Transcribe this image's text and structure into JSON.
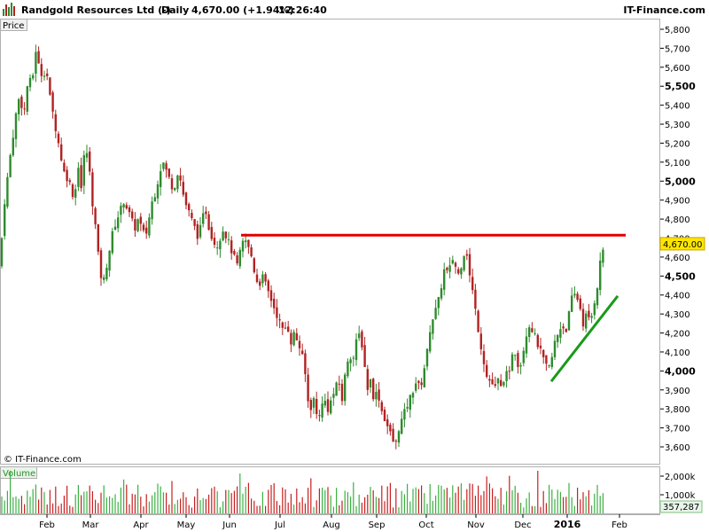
{
  "header": {
    "title": "Randgold Resources Ltd (-)",
    "interval": "Daily",
    "quote": "4,670.00 (+1.94%)",
    "time": "12:26:40",
    "brand": "IT-Finance.com"
  },
  "price_panel": {
    "label": "Price",
    "copyright": "© IT-Finance.com",
    "last_price_label": "4,670.00"
  },
  "volume_panel": {
    "label": "Volume",
    "ticks": [
      "2,000k",
      "1,000k"
    ],
    "last_volume_label": "357,287"
  },
  "colors": {
    "up_candle": "#2e8b2e",
    "down_candle": "#b22222",
    "resistance_line": "#e00000",
    "support_line": "#1a9a1a",
    "volume_bar_up": "#3cb043",
    "volume_bar_down": "#c82020"
  },
  "chart_data": {
    "type": "candlestick",
    "x_axis": {
      "labels": [
        "Feb",
        "Mar",
        "Apr",
        "May",
        "Jun",
        "Jul",
        "Aug",
        "Sep",
        "Oct",
        "Nov",
        "Dec",
        "2016",
        "Feb"
      ],
      "bold": [
        "2016"
      ]
    },
    "y_axis": {
      "labels": [
        "5,800",
        "5,700",
        "5,600",
        "5,500",
        "5,400",
        "5,300",
        "5,200",
        "5,100",
        "5,000",
        "4,900",
        "4,800",
        "4,700",
        "4,600",
        "4,500",
        "4,400",
        "4,300",
        "4,200",
        "4,100",
        "4,000",
        "3,900",
        "3,800",
        "3,700",
        "3,600"
      ],
      "bold": [
        "5,500",
        "5,000",
        "4,500",
        "4,000"
      ],
      "range": [
        3550,
        5830
      ]
    },
    "close_path": [
      [
        0,
        4550
      ],
      [
        4,
        4850
      ],
      [
        8,
        5000
      ],
      [
        12,
        5150
      ],
      [
        18,
        5350
      ],
      [
        22,
        5450
      ],
      [
        27,
        5350
      ],
      [
        32,
        5550
      ],
      [
        36,
        5500
      ],
      [
        40,
        5700
      ],
      [
        44,
        5600
      ],
      [
        48,
        5550
      ],
      [
        52,
        5600
      ],
      [
        56,
        5450
      ],
      [
        60,
        5350
      ],
      [
        64,
        5250
      ],
      [
        68,
        5150
      ],
      [
        72,
        5050
      ],
      [
        78,
        5000
      ],
      [
        84,
        4900
      ],
      [
        88,
        5100
      ],
      [
        92,
        4950
      ],
      [
        96,
        5200
      ],
      [
        100,
        5100
      ],
      [
        104,
        4900
      ],
      [
        108,
        4750
      ],
      [
        112,
        4550
      ],
      [
        116,
        4450
      ],
      [
        120,
        4550
      ],
      [
        124,
        4650
      ],
      [
        128,
        4750
      ],
      [
        132,
        4800
      ],
      [
        136,
        4850
      ],
      [
        140,
        4900
      ],
      [
        144,
        4850
      ],
      [
        148,
        4800
      ],
      [
        152,
        4750
      ],
      [
        156,
        4800
      ],
      [
        160,
        4750
      ],
      [
        164,
        4700
      ],
      [
        168,
        4800
      ],
      [
        172,
        4900
      ],
      [
        176,
        4950
      ],
      [
        180,
        5050
      ],
      [
        184,
        5100
      ],
      [
        188,
        5050
      ],
      [
        192,
        5000
      ],
      [
        196,
        4950
      ],
      [
        200,
        5050
      ],
      [
        204,
        5000
      ],
      [
        208,
        4900
      ],
      [
        212,
        4850
      ],
      [
        216,
        4800
      ],
      [
        220,
        4750
      ],
      [
        224,
        4700
      ],
      [
        228,
        4800
      ],
      [
        232,
        4850
      ],
      [
        236,
        4750
      ],
      [
        240,
        4700
      ],
      [
        244,
        4650
      ],
      [
        248,
        4700
      ],
      [
        252,
        4750
      ],
      [
        256,
        4700
      ],
      [
        260,
        4650
      ],
      [
        264,
        4600
      ],
      [
        268,
        4550
      ],
      [
        272,
        4650
      ],
      [
        276,
        4700
      ],
      [
        280,
        4650
      ],
      [
        284,
        4600
      ],
      [
        288,
        4500
      ],
      [
        292,
        4450
      ],
      [
        296,
        4500
      ],
      [
        300,
        4450
      ],
      [
        304,
        4400
      ],
      [
        308,
        4350
      ],
      [
        312,
        4300
      ],
      [
        316,
        4250
      ],
      [
        320,
        4200
      ],
      [
        324,
        4250
      ],
      [
        328,
        4150
      ],
      [
        332,
        4200
      ],
      [
        336,
        4150
      ],
      [
        340,
        4100
      ],
      [
        344,
        4000
      ],
      [
        347,
        3850
      ],
      [
        350,
        3800
      ],
      [
        354,
        3850
      ],
      [
        358,
        3750
      ],
      [
        362,
        3800
      ],
      [
        366,
        3850
      ],
      [
        370,
        3800
      ],
      [
        374,
        3850
      ],
      [
        378,
        3900
      ],
      [
        382,
        3950
      ],
      [
        386,
        3850
      ],
      [
        390,
        4000
      ],
      [
        394,
        4100
      ],
      [
        398,
        4050
      ],
      [
        402,
        4150
      ],
      [
        406,
        4200
      ],
      [
        410,
        4100
      ],
      [
        414,
        3900
      ],
      [
        418,
        3950
      ],
      [
        422,
        3850
      ],
      [
        426,
        3900
      ],
      [
        430,
        3800
      ],
      [
        434,
        3750
      ],
      [
        438,
        3700
      ],
      [
        442,
        3650
      ],
      [
        446,
        3600
      ],
      [
        450,
        3700
      ],
      [
        454,
        3750
      ],
      [
        458,
        3800
      ],
      [
        462,
        3850
      ],
      [
        466,
        3900
      ],
      [
        470,
        3950
      ],
      [
        474,
        3900
      ],
      [
        478,
        4000
      ],
      [
        482,
        4100
      ],
      [
        486,
        4250
      ],
      [
        490,
        4300
      ],
      [
        494,
        4350
      ],
      [
        498,
        4450
      ],
      [
        502,
        4550
      ],
      [
        506,
        4500
      ],
      [
        510,
        4600
      ],
      [
        514,
        4550
      ],
      [
        518,
        4500
      ],
      [
        522,
        4600
      ],
      [
        526,
        4650
      ],
      [
        530,
        4500
      ],
      [
        534,
        4400
      ],
      [
        537,
        4300
      ],
      [
        542,
        4150
      ],
      [
        546,
        4050
      ],
      [
        550,
        3950
      ],
      [
        554,
        3950
      ],
      [
        558,
        3900
      ],
      [
        562,
        3950
      ],
      [
        566,
        3900
      ],
      [
        570,
        4000
      ],
      [
        574,
        3950
      ],
      [
        578,
        4100
      ],
      [
        582,
        4100
      ],
      [
        586,
        4000
      ],
      [
        590,
        4100
      ],
      [
        594,
        4200
      ],
      [
        598,
        4250
      ],
      [
        602,
        4200
      ],
      [
        606,
        4150
      ],
      [
        610,
        4100
      ],
      [
        614,
        4050
      ],
      [
        618,
        4000
      ],
      [
        622,
        4050
      ],
      [
        626,
        4150
      ],
      [
        630,
        4200
      ],
      [
        634,
        4250
      ],
      [
        638,
        4200
      ],
      [
        642,
        4300
      ],
      [
        646,
        4400
      ],
      [
        650,
        4400
      ],
      [
        654,
        4350
      ],
      [
        658,
        4250
      ],
      [
        662,
        4300
      ],
      [
        666,
        4250
      ],
      [
        670,
        4350
      ],
      [
        674,
        4450
      ],
      [
        678,
        4600
      ],
      [
        682,
        4670
      ]
    ],
    "resistance": [
      [
        272,
        4715
      ],
      [
        706,
        4715
      ]
    ],
    "support": [
      [
        622,
        3945
      ],
      [
        697,
        4395
      ]
    ],
    "volume_range": [
      0,
      2400000
    ],
    "last_price": 4670,
    "last_volume": 357287
  }
}
